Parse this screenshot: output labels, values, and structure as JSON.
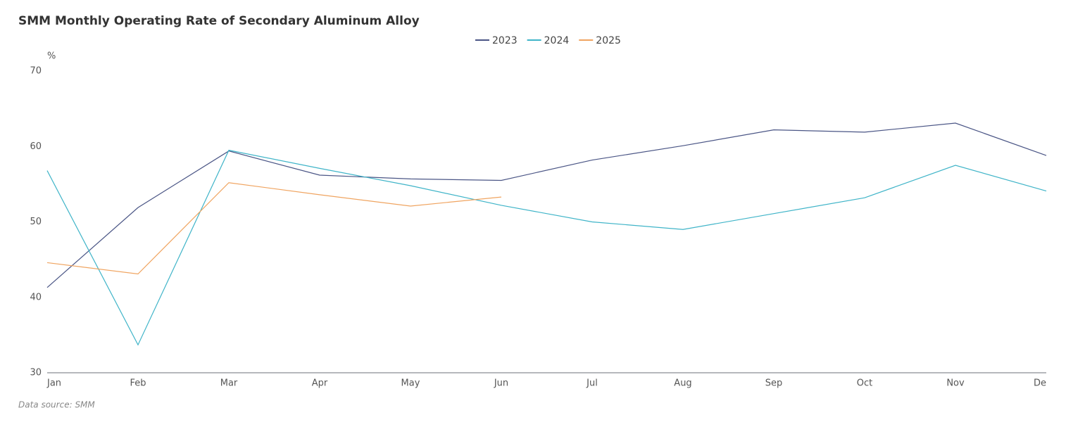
{
  "chart_data": {
    "type": "line",
    "title": "SMM Monthly Operating Rate of Secondary Aluminum Alloy",
    "y_axis_label": "%",
    "source": "Data source:  SMM",
    "categories": [
      "Jan",
      "Feb",
      "Mar",
      "Apr",
      "May",
      "Jun",
      "Jul",
      "Aug",
      "Sep",
      "Oct",
      "Nov",
      "De"
    ],
    "series": [
      {
        "name": "2023",
        "color": "#4a5585",
        "values": [
          41.3,
          51.9,
          59.4,
          56.2,
          55.7,
          55.5,
          58.2,
          60.1,
          62.2,
          61.9,
          63.1,
          58.8
        ]
      },
      {
        "name": "2024",
        "color": "#3fb4c8",
        "values": [
          56.8,
          33.7,
          59.5,
          57.1,
          54.8,
          52.2,
          50.0,
          49.0,
          51.1,
          53.2,
          57.5,
          54.1
        ]
      },
      {
        "name": "2025",
        "color": "#f0a460",
        "values": [
          44.6,
          43.1,
          55.2,
          53.6,
          52.1,
          53.3,
          null,
          null,
          null,
          null,
          null,
          null
        ]
      }
    ],
    "ylim": [
      30,
      70
    ],
    "yticks": [
      30,
      40,
      50,
      60,
      70
    ],
    "grid": false,
    "legend": "top"
  }
}
